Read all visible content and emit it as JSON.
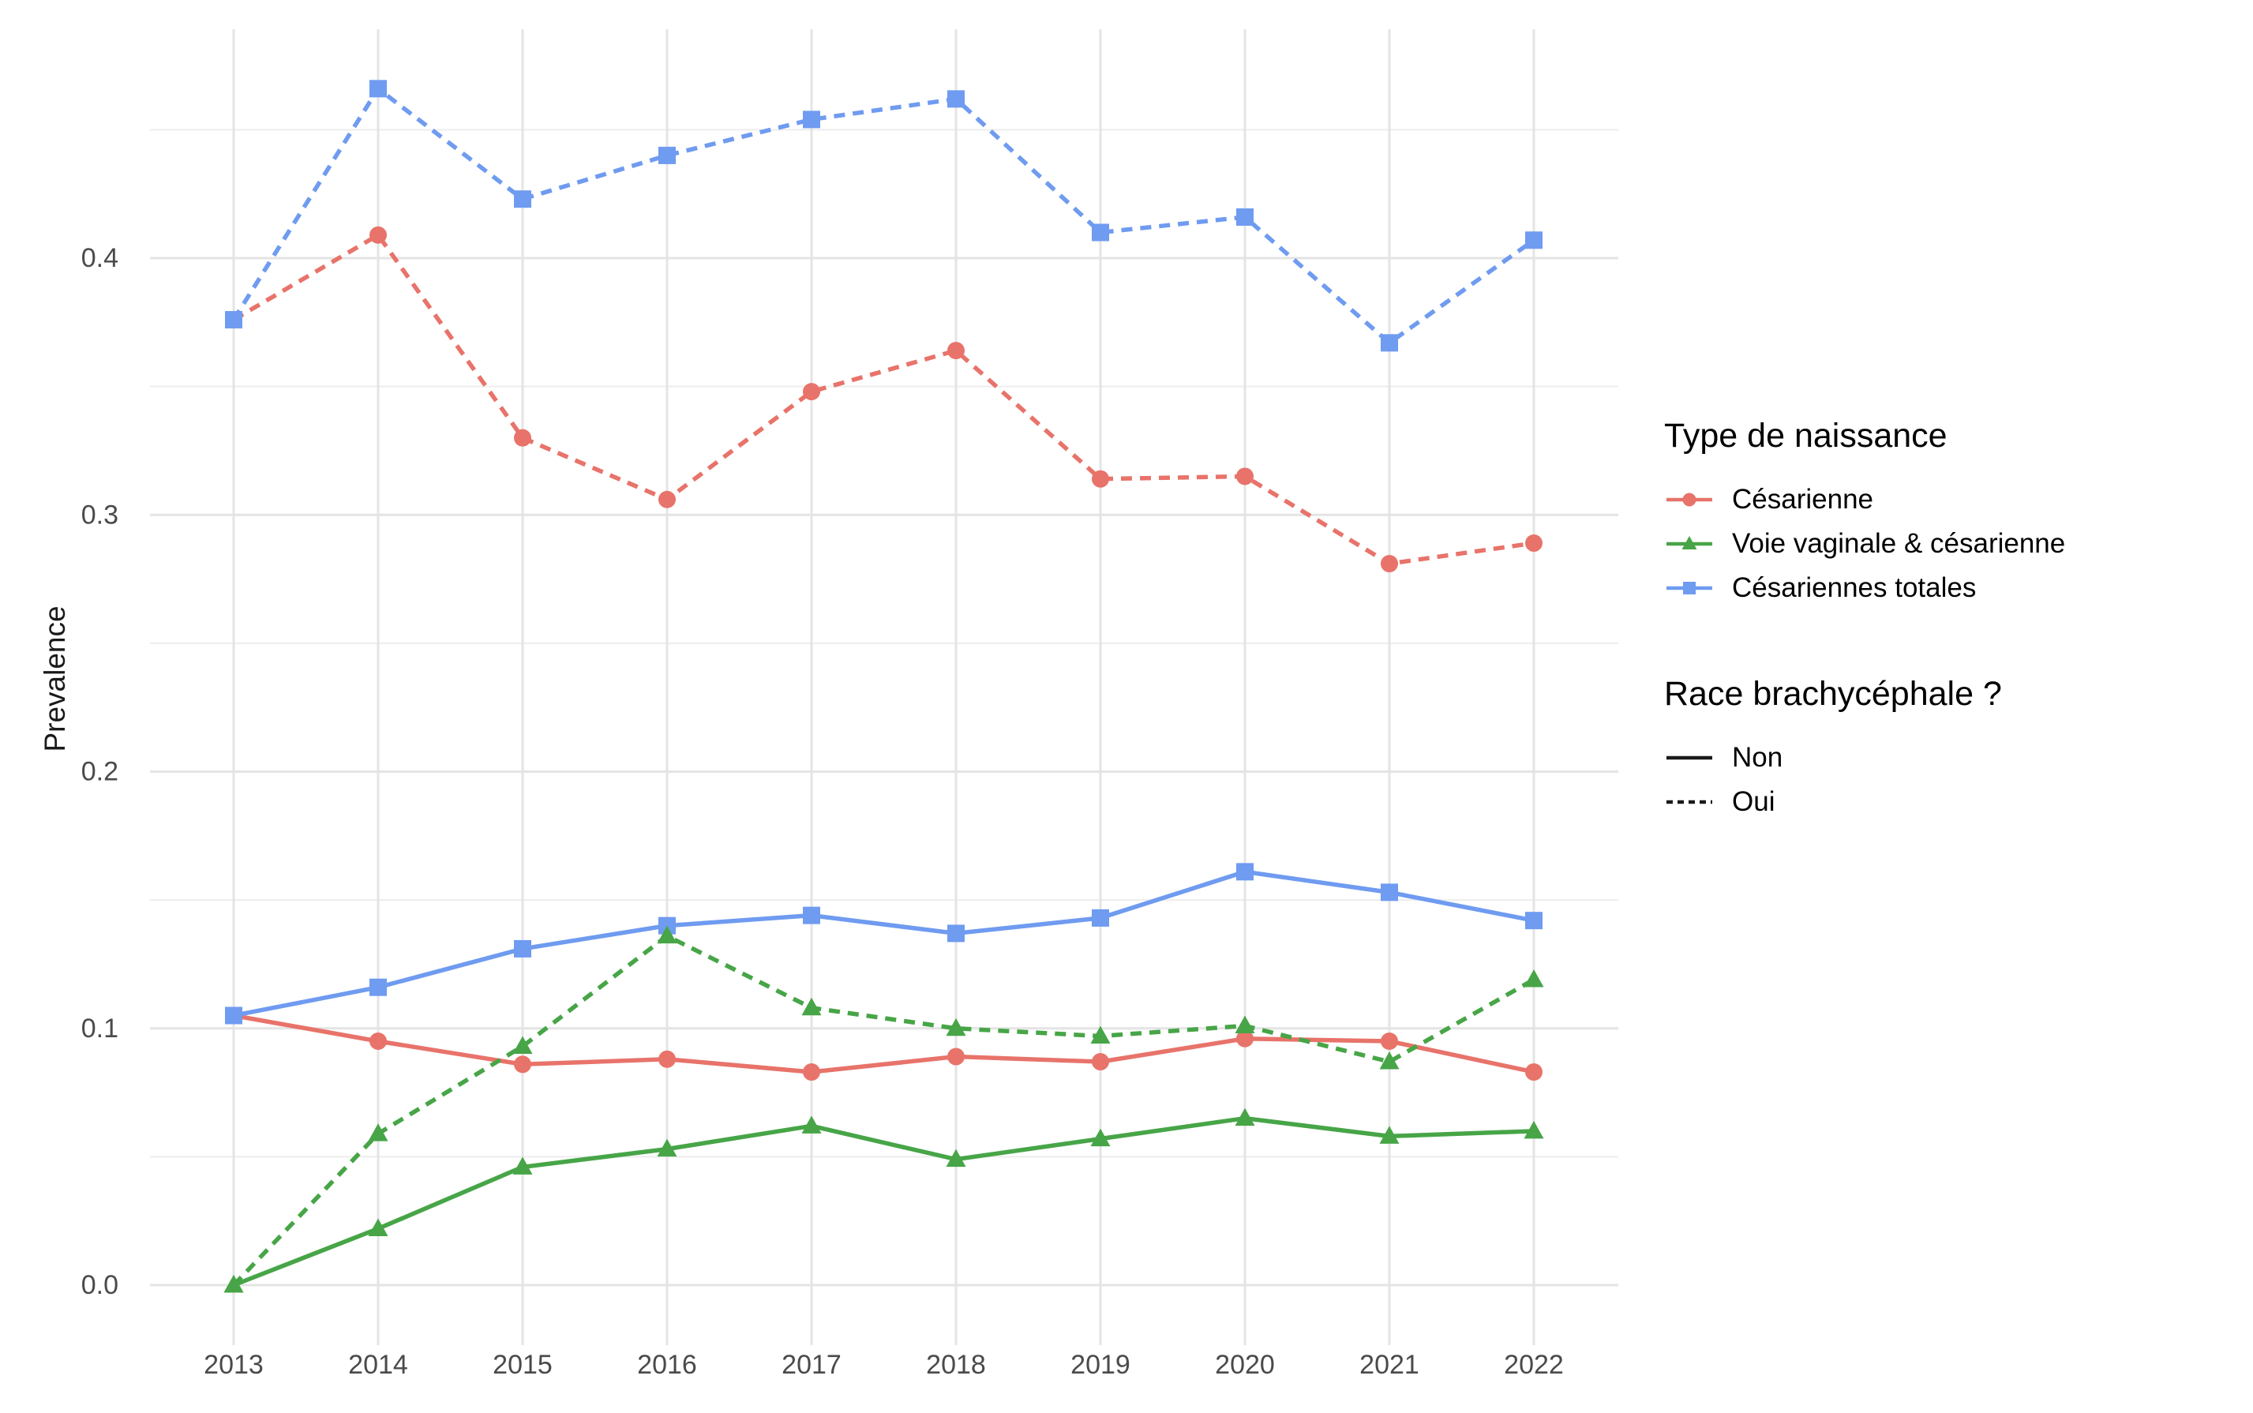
{
  "y_axis": {
    "title": "Prevalence",
    "ticks": [
      "0.0",
      "0.1",
      "0.2",
      "0.3",
      "0.4"
    ]
  },
  "x_axis": {
    "ticks": [
      "2013",
      "2014",
      "2015",
      "2016",
      "2017",
      "2018",
      "2019",
      "2020",
      "2021",
      "2022"
    ]
  },
  "legend": {
    "type_title": "Type de naissance",
    "type_items": [
      {
        "label": "Césarienne",
        "color": "#E8736A",
        "marker": "circle"
      },
      {
        "label": "Voie vaginale & césarienne",
        "color": "#47A547",
        "marker": "triangle"
      },
      {
        "label": "Césariennes totales",
        "color": "#6F9BF0",
        "marker": "square"
      }
    ],
    "race_title": "Race brachycéphale ?",
    "race_items": [
      {
        "label": "Non",
        "dash": "solid"
      },
      {
        "label": "Oui",
        "dash": "dashed"
      }
    ]
  },
  "chart_data": {
    "type": "line",
    "title": "",
    "xlabel": "",
    "ylabel": "Prevalence",
    "x": [
      2013,
      2014,
      2015,
      2016,
      2017,
      2018,
      2019,
      2020,
      2021,
      2022
    ],
    "ylim": [
      0,
      0.49
    ],
    "grid": "on",
    "legend_position": "right",
    "palette": {
      "red": "#E8736A",
      "green": "#47A547",
      "blue": "#6F9BF0"
    },
    "grid_colors": {
      "major": "#E4E4E4",
      "minor": "#EDEDED"
    },
    "tick_color": "#4A4A4A",
    "series": [
      {
        "name": "Césarienne",
        "group": "Oui",
        "colorKey": "red",
        "marker": "circle",
        "linetype": "dashed",
        "values": [
          0.376,
          0.409,
          0.33,
          0.306,
          0.348,
          0.364,
          0.314,
          0.315,
          0.281,
          0.289
        ]
      },
      {
        "name": "Césarienne",
        "group": "Non",
        "colorKey": "red",
        "marker": "circle",
        "linetype": "solid",
        "values": [
          0.105,
          0.095,
          0.086,
          0.088,
          0.083,
          0.089,
          0.087,
          0.096,
          0.095,
          0.083
        ]
      },
      {
        "name": "Césariennes totales",
        "group": "Oui",
        "colorKey": "blue",
        "marker": "square",
        "linetype": "dashed",
        "values": [
          0.376,
          0.466,
          0.423,
          0.44,
          0.454,
          0.462,
          0.41,
          0.416,
          0.367,
          0.407
        ]
      },
      {
        "name": "Césariennes totales",
        "group": "Non",
        "colorKey": "blue",
        "marker": "square",
        "linetype": "solid",
        "values": [
          0.105,
          0.116,
          0.131,
          0.14,
          0.144,
          0.137,
          0.143,
          0.161,
          0.153,
          0.142
        ]
      },
      {
        "name": "Voie vaginale & césarienne",
        "group": "Oui",
        "colorKey": "green",
        "marker": "triangle",
        "linetype": "dashed",
        "values": [
          0.0,
          0.059,
          0.093,
          0.136,
          0.108,
          0.1,
          0.097,
          0.101,
          0.087,
          0.119
        ]
      },
      {
        "name": "Voie vaginale & césarienne",
        "group": "Non",
        "colorKey": "green",
        "marker": "triangle",
        "linetype": "solid",
        "values": [
          0.0,
          0.022,
          0.046,
          0.053,
          0.062,
          0.049,
          0.057,
          0.065,
          0.058,
          0.06
        ]
      }
    ]
  }
}
